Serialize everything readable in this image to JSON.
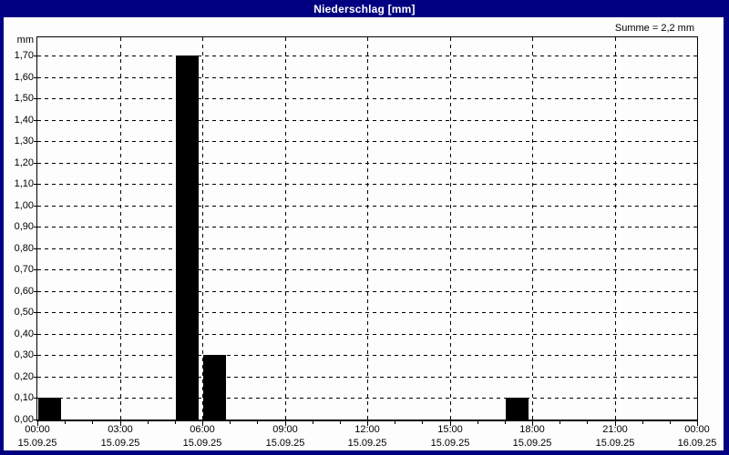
{
  "window": {
    "title": "Niederschlag [mm]"
  },
  "colors": {
    "titlebar": "#000080",
    "window_border": "#000080",
    "background": "#fdfdfd",
    "bar": "#000000",
    "grid": "#000000"
  },
  "chart_data": {
    "type": "bar",
    "title": "Niederschlag [mm]",
    "summary": "Summe = 2,2 mm",
    "total_mm": 2.2,
    "ylabel": "mm",
    "ylim": [
      0,
      1.785
    ],
    "grid": true,
    "y_axis": {
      "min": 0,
      "max": 1.7,
      "step": 0.1,
      "unit": "mm",
      "labels": [
        "0,00",
        "0,10",
        "0,20",
        "0,30",
        "0,40",
        "0,50",
        "0,60",
        "0,70",
        "0,80",
        "0,90",
        "1,00",
        "1,10",
        "1,20",
        "1,30",
        "1,40",
        "1,50",
        "1,60",
        "1,70"
      ]
    },
    "x_axis": {
      "start_hour": 0,
      "end_hour": 24,
      "minor_tick_interval_hours": 1,
      "major_tick_interval_hours": 3,
      "ticks": [
        {
          "hour": 0,
          "time": "00:00",
          "date": "15.09.25"
        },
        {
          "hour": 3,
          "time": "03:00",
          "date": "15.09.25"
        },
        {
          "hour": 6,
          "time": "06:00",
          "date": "15.09.25"
        },
        {
          "hour": 9,
          "time": "09:00",
          "date": "15.09.25"
        },
        {
          "hour": 12,
          "time": "12:00",
          "date": "15.09.25"
        },
        {
          "hour": 15,
          "time": "15:00",
          "date": "15.09.25"
        },
        {
          "hour": 18,
          "time": "18:00",
          "date": "15.09.25"
        },
        {
          "hour": 21,
          "time": "21:00",
          "date": "15.09.25"
        },
        {
          "hour": 24,
          "time": "00:00",
          "date": "16.09.25"
        }
      ]
    },
    "bars": [
      {
        "hour_start": 0,
        "hour_end": 1,
        "value": 0.1
      },
      {
        "hour_start": 5,
        "hour_end": 6,
        "value": 1.7
      },
      {
        "hour_start": 6,
        "hour_end": 7,
        "value": 0.3
      },
      {
        "hour_start": 17,
        "hour_end": 18,
        "value": 0.1
      }
    ]
  }
}
